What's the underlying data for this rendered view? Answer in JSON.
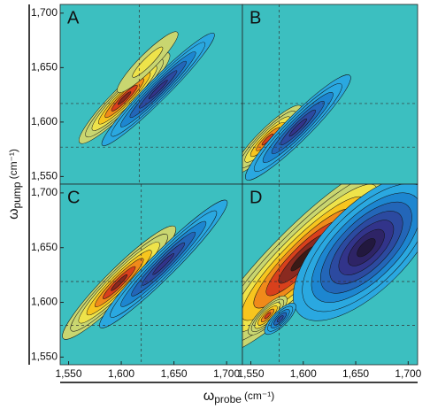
{
  "chart_data": [
    {
      "type": "contour",
      "label": "A",
      "xlim": [
        1542,
        1715
      ],
      "ylim": [
        1543,
        1708
      ],
      "yticks": [
        {
          "value": 1550,
          "label": "1,550"
        },
        {
          "value": 1600,
          "label": "1,600"
        },
        {
          "value": 1650,
          "label": "1,650"
        },
        {
          "value": 1700,
          "label": "1,700"
        }
      ],
      "dashed_x": [
        1617
      ],
      "dashed_y": [
        1617,
        1577
      ],
      "peaks": [
        {
          "x": 1603,
          "y": 1622,
          "amplitude": 0.9,
          "length": 60,
          "width": 11
        },
        {
          "x": 1625,
          "y": 1655,
          "amplitude": 0.3,
          "length": 40,
          "width": 8
        },
        {
          "x": 1635,
          "y": 1630,
          "amplitude": -0.8,
          "length": 75,
          "width": 10
        }
      ]
    },
    {
      "type": "contour",
      "label": "B",
      "xlim": [
        1542,
        1709
      ],
      "ylim": [
        1543,
        1708
      ],
      "dashed_x": [
        1577
      ],
      "dashed_y": [
        1617,
        1577
      ],
      "peaks": [
        {
          "x": 1566,
          "y": 1584,
          "amplitude": 0.8,
          "length": 45,
          "width": 10
        },
        {
          "x": 1595,
          "y": 1595,
          "amplitude": -0.8,
          "length": 70,
          "width": 12
        }
      ]
    },
    {
      "type": "contour",
      "label": "C",
      "xlim": [
        1542,
        1715
      ],
      "ylim": [
        1543,
        1708
      ],
      "xticks": [
        {
          "value": 1550,
          "label": "1,550"
        },
        {
          "value": 1600,
          "label": "1,600"
        },
        {
          "value": 1650,
          "label": "1,650"
        },
        {
          "value": 1700,
          "label": "1,700"
        }
      ],
      "yticks": [
        {
          "value": 1550,
          "label": "1,550"
        },
        {
          "value": 1600,
          "label": "1,600"
        },
        {
          "value": 1650,
          "label": "1,650"
        },
        {
          "value": 1700,
          "label": "1,700"
        }
      ],
      "dashed_x": [
        1619
      ],
      "dashed_y": [
        1619,
        1579
      ],
      "peaks": [
        {
          "x": 1598,
          "y": 1618,
          "amplitude": 0.9,
          "length": 75,
          "width": 13
        },
        {
          "x": 1640,
          "y": 1635,
          "amplitude": -0.8,
          "length": 85,
          "width": 12
        }
      ]
    },
    {
      "type": "contour",
      "label": "D",
      "xlim": [
        1542,
        1709
      ],
      "ylim": [
        1543,
        1708
      ],
      "xticks": [
        {
          "value": 1550,
          "label": "1,550"
        },
        {
          "value": 1600,
          "label": "1,600"
        },
        {
          "value": 1650,
          "label": "1,650"
        },
        {
          "value": 1700,
          "label": "1,700"
        }
      ],
      "dashed_x": [
        1577
      ],
      "dashed_y": [
        1619,
        1579
      ],
      "peaks": [
        {
          "x": 1600,
          "y": 1640,
          "amplitude": 1.0,
          "length": 130,
          "width": 30
        },
        {
          "x": 1566,
          "y": 1588,
          "amplitude": 0.7,
          "length": 25,
          "width": 8
        },
        {
          "x": 1660,
          "y": 1650,
          "amplitude": -1.0,
          "length": 90,
          "width": 40
        },
        {
          "x": 1578,
          "y": 1585,
          "amplitude": -0.6,
          "length": 20,
          "width": 7
        }
      ]
    }
  ],
  "y_label": {
    "symbol": "ω",
    "subscript": "pump",
    "unit": "(cm⁻¹)"
  },
  "x_label": {
    "symbol": "ω",
    "subscript": "probe",
    "unit": "(cm⁻¹)"
  }
}
